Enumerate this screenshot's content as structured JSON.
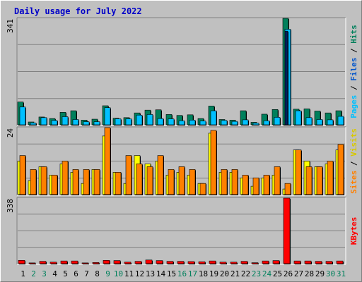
{
  "title": "Daily usage for July 2022",
  "colors": {
    "background": "#c0c0c0",
    "panel": "#c0c0c0",
    "gridline": "#808080",
    "hits": "#00805c",
    "files": "#00c0ff",
    "pages": "#00c0ff",
    "visits": "#ff8000",
    "sites": "#ffff00",
    "kbytes": "#ff0000",
    "title": "#0000c8",
    "weekday_label": "#000000",
    "weekend_label": "#00805c"
  },
  "chart_data": [
    {
      "type": "bar",
      "panel": "hits-files-pages",
      "ylabel_top": "341",
      "ylim": [
        0,
        341
      ],
      "legend_right": [
        "Pages",
        "Files",
        "Hits"
      ],
      "categories": [
        "1",
        "2",
        "3",
        "4",
        "5",
        "6",
        "7",
        "8",
        "9",
        "10",
        "11",
        "12",
        "13",
        "14",
        "15",
        "16",
        "17",
        "18",
        "19",
        "20",
        "21",
        "22",
        "23",
        "24",
        "25",
        "26",
        "27",
        "28",
        "29",
        "30",
        "31"
      ],
      "series": [
        {
          "name": "Hits",
          "values": [
            73,
            9,
            25,
            20,
            40,
            45,
            15,
            18,
            61,
            21,
            23,
            38,
            47,
            48,
            33,
            30,
            32,
            20,
            60,
            17,
            15,
            45,
            8,
            34,
            49,
            341,
            50,
            51,
            44,
            38,
            45
          ]
        },
        {
          "name": "Files",
          "values": [
            57,
            6,
            23,
            14,
            26,
            17,
            10,
            10,
            55,
            19,
            19,
            31,
            33,
            20,
            19,
            13,
            15,
            12,
            45,
            14,
            11,
            16,
            5,
            13,
            24,
            306,
            45,
            23,
            17,
            16,
            27
          ]
        },
        {
          "name": "Pages",
          "values": [
            0,
            0,
            0,
            0,
            0,
            0,
            0,
            0,
            0,
            0,
            0,
            0,
            0,
            0,
            0,
            0,
            0,
            0,
            0,
            0,
            0,
            0,
            0,
            0,
            0,
            300,
            0,
            0,
            0,
            0,
            0
          ]
        }
      ]
    },
    {
      "type": "bar",
      "panel": "visits-sites",
      "ylabel_top": "24",
      "ylim": [
        0,
        24
      ],
      "legend_right": [
        "Sites",
        "Visits"
      ],
      "categories": [
        "1",
        "2",
        "3",
        "4",
        "5",
        "6",
        "7",
        "8",
        "9",
        "10",
        "11",
        "12",
        "13",
        "14",
        "15",
        "16",
        "17",
        "18",
        "19",
        "20",
        "21",
        "22",
        "23",
        "24",
        "25",
        "26",
        "27",
        "28",
        "29",
        "30",
        "31"
      ],
      "series": [
        {
          "name": "Visits",
          "values": [
            14,
            9,
            10,
            7,
            12,
            9,
            9,
            9,
            24,
            8,
            14,
            11,
            10,
            14,
            9,
            10,
            9,
            4,
            23,
            9,
            9,
            7,
            6,
            7,
            10,
            4,
            16,
            10,
            10,
            12,
            18
          ]
        },
        {
          "name": "Sites",
          "values": [
            12,
            5,
            10,
            7,
            11,
            8,
            4,
            9,
            21,
            8,
            4,
            14,
            11,
            12,
            7,
            8,
            7,
            4,
            22,
            8,
            8,
            6,
            3,
            6,
            7,
            2,
            16,
            12,
            10,
            11,
            16
          ]
        }
      ]
    },
    {
      "type": "bar",
      "panel": "kbytes",
      "ylabel_top": "338",
      "ylim": [
        0,
        338
      ],
      "legend_right": [
        "KBytes"
      ],
      "categories": [
        "1",
        "2",
        "3",
        "4",
        "5",
        "6",
        "7",
        "8",
        "9",
        "10",
        "11",
        "12",
        "13",
        "14",
        "15",
        "16",
        "17",
        "18",
        "19",
        "20",
        "21",
        "22",
        "23",
        "24",
        "25",
        "26",
        "27",
        "28",
        "29",
        "30",
        "31"
      ],
      "series": [
        {
          "name": "KBytes",
          "values": [
            17,
            4,
            12,
            8,
            14,
            14,
            4,
            6,
            17,
            16,
            8,
            12,
            19,
            16,
            12,
            12,
            11,
            10,
            14,
            8,
            8,
            12,
            5,
            14,
            16,
            338,
            14,
            14,
            12,
            12,
            14
          ]
        }
      ]
    }
  ],
  "weekend_days": [
    2,
    3,
    9,
    10,
    16,
    17,
    23,
    24,
    30,
    31
  ]
}
